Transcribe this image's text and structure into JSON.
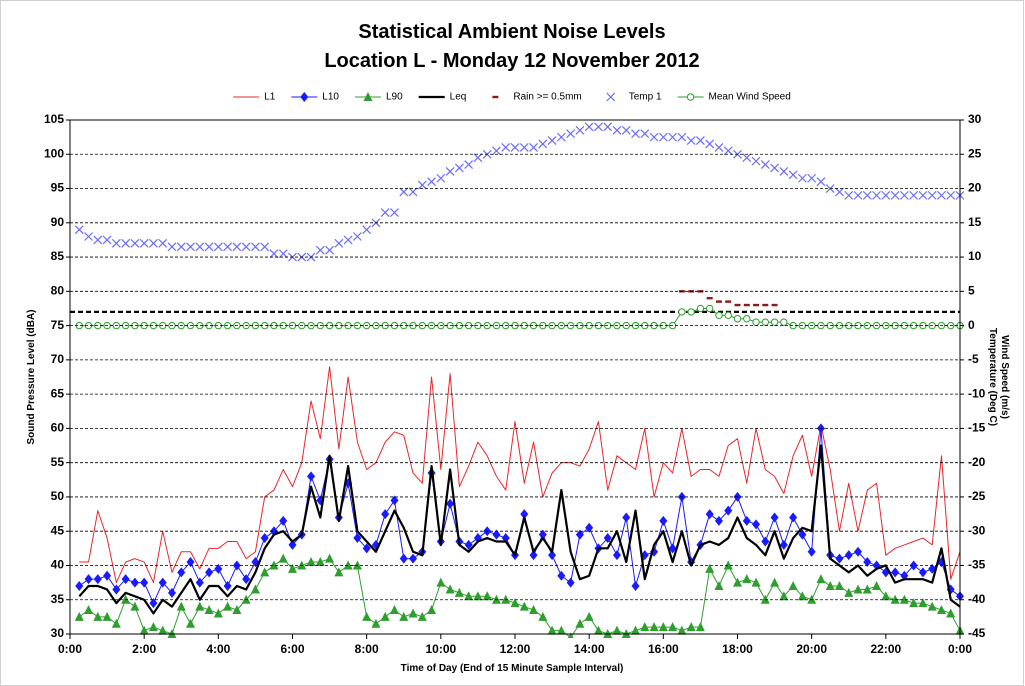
{
  "chart_data": {
    "type": "line",
    "title": "Statistical Ambient Noise Levels",
    "subtitle": "Location L - Monday 12 November 2012",
    "x_label": "Time of Day (End of 15 Minute Sample Interval)",
    "y_label": "Sound Pressure Level (dBA)",
    "y2_labels": [
      "Wind Speed (m/s)",
      "Temperature (Deg C)"
    ],
    "xlim": [
      0,
      24
    ],
    "xticks": [
      {
        "value": 0,
        "label": "0:00"
      },
      {
        "value": 2,
        "label": "2:00"
      },
      {
        "value": 4,
        "label": "4:00"
      },
      {
        "value": 6,
        "label": "6:00"
      },
      {
        "value": 8,
        "label": "8:00"
      },
      {
        "value": 10,
        "label": "10:00"
      },
      {
        "value": 12,
        "label": "12:00"
      },
      {
        "value": 14,
        "label": "14:00"
      },
      {
        "value": 16,
        "label": "16:00"
      },
      {
        "value": 18,
        "label": "18:00"
      },
      {
        "value": 20,
        "label": "20:00"
      },
      {
        "value": 22,
        "label": "22:00"
      },
      {
        "value": 24,
        "label": "0:00"
      }
    ],
    "ylim": [
      30,
      105
    ],
    "yticks": [
      30,
      35,
      40,
      45,
      50,
      55,
      60,
      65,
      70,
      75,
      80,
      85,
      90,
      95,
      100,
      105
    ],
    "y2lim": [
      -45,
      30
    ],
    "y2ticks": [
      -45,
      -40,
      -35,
      -30,
      -25,
      -20,
      -15,
      -10,
      -5,
      0,
      5,
      10,
      15,
      20,
      25,
      30
    ],
    "grid": true,
    "legend": "top",
    "reference_line": 77,
    "x": [
      0.25,
      0.5,
      0.75,
      1,
      1.25,
      1.5,
      1.75,
      2,
      2.25,
      2.5,
      2.75,
      3,
      3.25,
      3.5,
      3.75,
      4,
      4.25,
      4.5,
      4.75,
      5,
      5.25,
      5.5,
      5.75,
      6,
      6.25,
      6.5,
      6.75,
      7,
      7.25,
      7.5,
      7.75,
      8,
      8.25,
      8.5,
      8.75,
      9,
      9.25,
      9.5,
      9.75,
      10,
      10.25,
      10.5,
      10.75,
      11,
      11.25,
      11.5,
      11.75,
      12,
      12.25,
      12.5,
      12.75,
      13,
      13.25,
      13.5,
      13.75,
      14,
      14.25,
      14.5,
      14.75,
      15,
      15.25,
      15.5,
      15.75,
      16,
      16.25,
      16.5,
      16.75,
      17,
      17.25,
      17.5,
      17.75,
      18,
      18.25,
      18.5,
      18.75,
      19,
      19.25,
      19.5,
      19.75,
      20,
      20.25,
      20.5,
      20.75,
      21,
      21.25,
      21.5,
      21.75,
      22,
      22.25,
      22.5,
      22.75,
      23,
      23.25,
      23.5,
      23.75,
      24
    ],
    "series": [
      {
        "name": "L1",
        "color": "#e8272a",
        "width": 1,
        "marker": "none",
        "values": [
          40.5,
          40.5,
          48,
          44,
          37.5,
          40.5,
          41,
          40.5,
          37.5,
          45,
          39,
          42,
          42,
          39.5,
          42.5,
          42.5,
          43.5,
          43.5,
          41,
          42,
          50,
          51,
          54,
          51.5,
          55,
          64,
          58.5,
          69,
          57,
          67.5,
          58,
          54,
          55,
          58,
          59.5,
          59,
          53.5,
          52,
          67.5,
          54,
          68,
          51.5,
          54.5,
          58,
          56,
          53,
          51,
          61,
          52,
          58,
          50,
          53.5,
          55,
          55,
          54.5,
          57,
          61,
          51,
          56,
          55,
          54,
          60,
          50,
          55,
          53.5,
          60,
          53,
          54,
          54,
          53,
          57.5,
          58.5,
          52,
          60,
          54,
          53,
          50.5,
          56,
          59,
          53,
          60.5,
          54,
          45,
          52,
          45,
          51,
          52,
          41.5,
          42.5,
          43,
          43.5,
          44,
          43,
          56,
          38,
          42
        ]
      },
      {
        "name": "L10",
        "color": "#1a1aff",
        "width": 1,
        "marker": "diamond",
        "values": [
          37,
          38,
          38,
          38.5,
          36.5,
          38,
          37.5,
          37.5,
          34.5,
          37.5,
          36,
          39,
          40.5,
          37.5,
          39,
          39.5,
          37,
          40,
          38,
          40.5,
          44,
          45,
          46.5,
          43,
          44.5,
          53,
          49.5,
          55.5,
          47,
          52,
          44,
          42.5,
          43,
          47.5,
          49.5,
          41,
          41,
          42,
          53.5,
          43.5,
          49,
          43.5,
          43,
          44,
          45,
          44.5,
          44,
          41.5,
          47.5,
          41.5,
          44.5,
          41.5,
          38.5,
          37.5,
          44.5,
          45.5,
          42.5,
          44,
          41.5,
          47,
          37,
          41.5,
          42,
          46.5,
          42.5,
          50,
          40.5,
          43,
          47.5,
          46.5,
          48,
          50,
          46.5,
          46,
          43.5,
          47,
          43,
          47,
          44.5,
          42,
          60,
          41.5,
          41,
          41.5,
          42,
          40.5,
          40,
          39,
          39,
          38.5,
          40,
          39,
          39.5,
          40.5,
          36.5,
          35.5
        ]
      },
      {
        "name": "L90",
        "color": "#2e9e2e",
        "width": 1,
        "marker": "triangle",
        "values": [
          32.5,
          33.5,
          32.5,
          32.5,
          31.5,
          35,
          34,
          30.5,
          31,
          30.5,
          30,
          34,
          31.5,
          34,
          33.5,
          33,
          34,
          33.5,
          35,
          36.5,
          39,
          40,
          41,
          39.5,
          40,
          40.5,
          40.5,
          41,
          39,
          40,
          40,
          32.5,
          31.5,
          32.5,
          33.5,
          32.5,
          33,
          32.5,
          33.5,
          37.5,
          36.5,
          36,
          35.5,
          35.5,
          35.5,
          35,
          35,
          34.5,
          34,
          33.5,
          32.5,
          30.5,
          30.5,
          29.5,
          31.5,
          32.5,
          30.5,
          30,
          30.5,
          30,
          30.5,
          31,
          31,
          31,
          31,
          30.5,
          31,
          31,
          39.5,
          37,
          40,
          37.5,
          38,
          37.5,
          35,
          37.5,
          35.5,
          37,
          35.5,
          35,
          38,
          37,
          37,
          36,
          36.5,
          36.5,
          37,
          35.5,
          35,
          35,
          34.5,
          34.5,
          34,
          33.5,
          33,
          30.5
        ]
      },
      {
        "name": "Leq",
        "color": "#000000",
        "width": 2.2,
        "marker": "none",
        "values": [
          35.5,
          37,
          37,
          36.5,
          34.5,
          36,
          35.5,
          35,
          33,
          35,
          34,
          36,
          38,
          35,
          37,
          37,
          35.5,
          37,
          36.5,
          39,
          42.5,
          44.5,
          45,
          43.5,
          44.5,
          51.5,
          47,
          56,
          46.5,
          54.5,
          45,
          43.5,
          42,
          45,
          48,
          45.5,
          42,
          41.5,
          54.5,
          43,
          54,
          43,
          42,
          43.5,
          44,
          43.5,
          43.5,
          41.5,
          47,
          42,
          44,
          42,
          51,
          42,
          38,
          38.5,
          42.5,
          42.5,
          45,
          40.5,
          48,
          38,
          43,
          45,
          40.5,
          45,
          40,
          43,
          43.5,
          43,
          44,
          47,
          44,
          43,
          41.5,
          45,
          41,
          44,
          45.5,
          45,
          57.5,
          41,
          40,
          39,
          40,
          38.5,
          39.5,
          40,
          37.5,
          38,
          38,
          38,
          37.5,
          42.5,
          35,
          34
        ]
      },
      {
        "name": "Rain >= 0.5mm",
        "color": "#8b1a1a",
        "width": 0,
        "marker": "dash",
        "axis": "y2",
        "x": [
          16.5,
          16.75,
          17,
          17.25,
          17.5,
          17.75,
          18,
          18.25,
          18.5,
          18.75,
          19
        ],
        "values": [
          5,
          5,
          5,
          4,
          3.5,
          3.5,
          3,
          3,
          3,
          3,
          3
        ]
      },
      {
        "name": "Temp 1",
        "color": "#6b6bff",
        "width": 0,
        "marker": "x",
        "axis": "y2",
        "values": [
          14,
          13,
          12.5,
          12.5,
          12,
          12,
          12,
          12,
          12,
          12,
          11.5,
          11.5,
          11.5,
          11.5,
          11.5,
          11.5,
          11.5,
          11.5,
          11.5,
          11.5,
          11.5,
          10.5,
          10.5,
          10,
          10,
          10,
          11,
          11,
          12,
          12.5,
          13,
          14,
          15,
          16.5,
          16.5,
          19.5,
          19.5,
          20.5,
          21,
          21.5,
          22.5,
          23,
          23.5,
          24.5,
          25,
          25.5,
          26,
          26,
          26,
          26,
          26.5,
          27,
          27.5,
          28,
          28.5,
          29,
          29,
          29,
          28.5,
          28.5,
          28,
          28,
          27.5,
          27.5,
          27.5,
          27.5,
          27,
          27,
          26.5,
          26,
          25.5,
          25,
          24.5,
          24,
          23.5,
          23,
          22.5,
          22,
          21.5,
          21.5,
          21,
          20,
          19.5,
          19,
          19,
          19,
          19,
          19,
          19,
          19,
          19,
          19,
          19,
          19,
          19,
          19
        ]
      },
      {
        "name": "Mean Wind Speed",
        "color": "#2e9e2e",
        "width": 1,
        "marker": "circle",
        "axis": "y2",
        "values": [
          0,
          0,
          0,
          0,
          0,
          0,
          0,
          0,
          0,
          0,
          0,
          0,
          0,
          0,
          0,
          0,
          0,
          0,
          0,
          0,
          0,
          0,
          0,
          0,
          0,
          0,
          0,
          0,
          0,
          0,
          0,
          0,
          0,
          0,
          0,
          0,
          0,
          0,
          0,
          0,
          0,
          0,
          0,
          0,
          0,
          0,
          0,
          0,
          0,
          0,
          0,
          0,
          0,
          0,
          0,
          0,
          0,
          0,
          0,
          0,
          0,
          0,
          0,
          0,
          0,
          2,
          2,
          2.5,
          2.5,
          1.5,
          1.5,
          1,
          1,
          0.5,
          0.5,
          0.5,
          0.5,
          0,
          0,
          0,
          0,
          0,
          0,
          0,
          0,
          0,
          0,
          0,
          0,
          0,
          0,
          0,
          0,
          0,
          0,
          0
        ]
      }
    ]
  }
}
